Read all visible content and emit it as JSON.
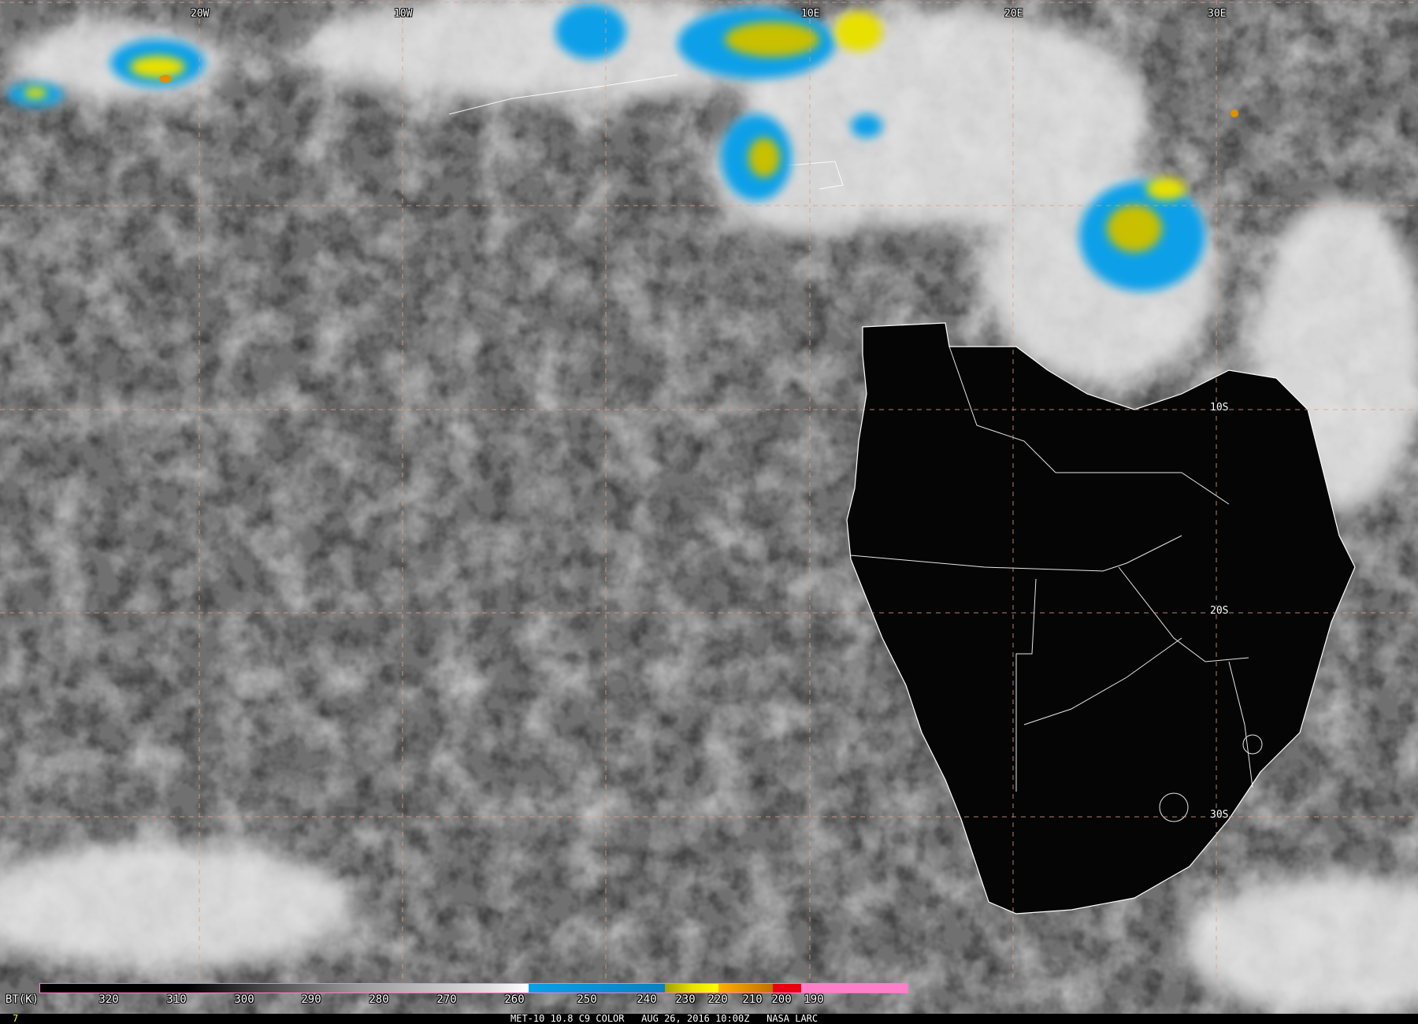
{
  "image": {
    "caption": "MET-10 10.8 C9 COLOR   AUG 26, 2016 10:00Z   NASA LARC",
    "frame_number": "7"
  },
  "grid": {
    "longitude_labels": [
      "20W",
      "10W",
      "10E",
      "20E",
      "30E"
    ],
    "latitude_labels": [
      "10S",
      "20S",
      "30S"
    ],
    "line_color": "#e0a080"
  },
  "colorbar": {
    "unit_label": "BT(K)",
    "tick_labels": [
      "320",
      "310",
      "300",
      "290",
      "280",
      "270",
      "260",
      "250",
      "240",
      "230",
      "220",
      "210",
      "200",
      "190"
    ],
    "colors": {
      "warm_gray_start": "#000000",
      "cold_gray_end": "#ffffff",
      "blue": "#0aa0e8",
      "yellow": "#e8e000",
      "orange": "#e09000",
      "red": "#e80010",
      "pink": "#ff80c8"
    }
  }
}
